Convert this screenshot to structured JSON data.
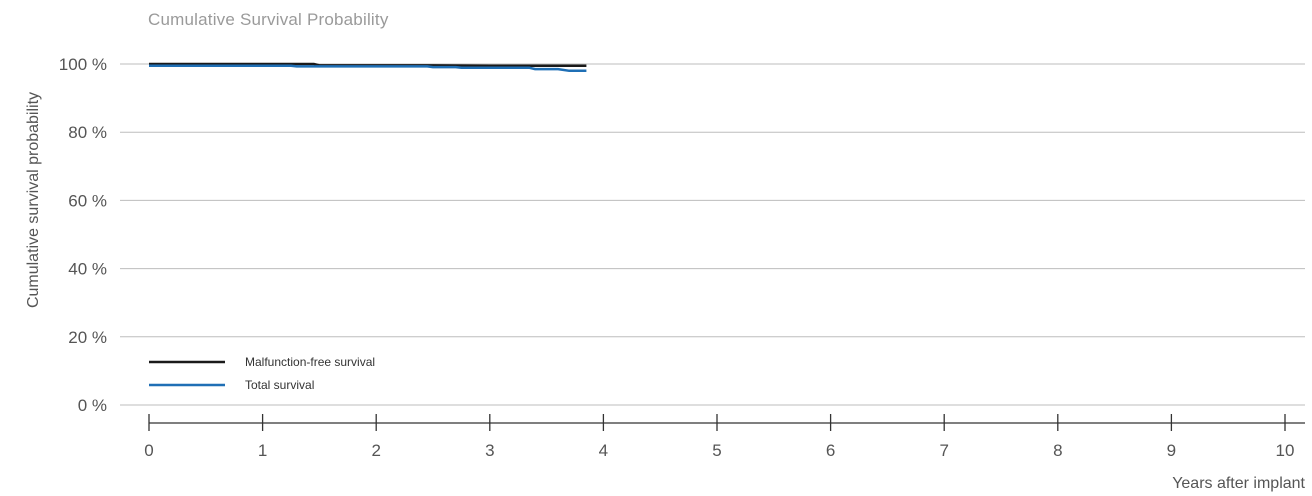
{
  "chart_data": {
    "type": "line",
    "title": "Cumulative Survival Probability",
    "xlabel": "Years after implant",
    "ylabel": "Cumulative survival probability",
    "xlim": [
      0,
      10
    ],
    "ylim": [
      0,
      100
    ],
    "x_ticks": [
      "0",
      "1",
      "2",
      "3",
      "4",
      "5",
      "6",
      "7",
      "8",
      "9",
      "10"
    ],
    "y_ticks": [
      "0 %",
      "20 %",
      "40 %",
      "60 %",
      "80 %",
      "100 %"
    ],
    "grid": "horizontal",
    "legend_position": "bottom-left",
    "series": [
      {
        "name": "Malfunction-free survival",
        "color": "#1a1a1a",
        "points": [
          [
            0,
            100
          ],
          [
            1.45,
            100
          ],
          [
            1.5,
            99.6
          ],
          [
            2.0,
            99.6
          ],
          [
            2.5,
            99.6
          ],
          [
            3.0,
            99.5
          ],
          [
            3.85,
            99.5
          ]
        ]
      },
      {
        "name": "Total survival",
        "color": "#1f6fb5",
        "points": [
          [
            0,
            99.5
          ],
          [
            1.25,
            99.5
          ],
          [
            1.3,
            99.3
          ],
          [
            2.0,
            99.3
          ],
          [
            2.45,
            99.3
          ],
          [
            2.5,
            99.1
          ],
          [
            2.7,
            99.1
          ],
          [
            2.75,
            98.9
          ],
          [
            3.35,
            98.9
          ],
          [
            3.4,
            98.5
          ],
          [
            3.6,
            98.5
          ],
          [
            3.7,
            98.0
          ],
          [
            3.85,
            98.0
          ]
        ]
      }
    ]
  }
}
